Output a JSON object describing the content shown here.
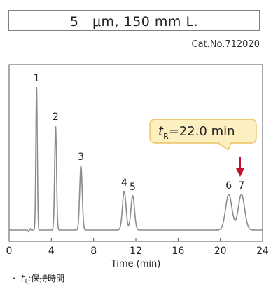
{
  "title": "5　μm, 150 mm L.",
  "catalog": "Cat.No.712020",
  "footnote": {
    "bullet": "・",
    "symbol": "t",
    "subscript": "R",
    "text": ":保持時間"
  },
  "callout": {
    "symbol": "t",
    "subscript": "R",
    "text": "=22.0 min",
    "fill": "#fdf0c0",
    "stroke": "#e8b84a"
  },
  "arrow_color": "#c8102e",
  "chart_data": {
    "type": "line",
    "xlabel": "Time (min)",
    "ylabel": "",
    "xlim": [
      0,
      24
    ],
    "ylim": [
      0,
      100
    ],
    "xticks": [
      0,
      4,
      8,
      12,
      16,
      20,
      24
    ],
    "grid": false,
    "series": [
      {
        "name": "",
        "color": "#8c8c8c"
      }
    ],
    "peaks": [
      {
        "label": "1",
        "time": 2.6,
        "height": 100,
        "width": 0.07
      },
      {
        "label": "2",
        "time": 4.4,
        "height": 73,
        "width": 0.09
      },
      {
        "label": "3",
        "time": 6.8,
        "height": 45,
        "width": 0.12
      },
      {
        "label": "4",
        "time": 10.9,
        "height": 27,
        "width": 0.17
      },
      {
        "label": "5",
        "time": 11.7,
        "height": 24,
        "width": 0.17
      },
      {
        "label": "6",
        "time": 20.8,
        "height": 25,
        "width": 0.3
      },
      {
        "label": "7",
        "time": 22.0,
        "height": 25,
        "width": 0.3
      }
    ]
  }
}
